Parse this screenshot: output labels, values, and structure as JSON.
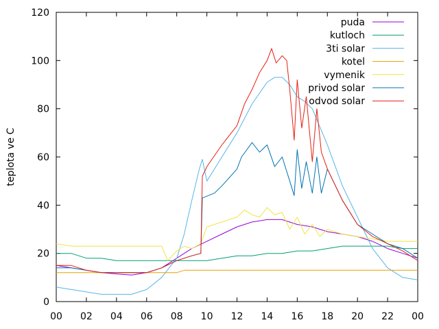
{
  "chart_data": {
    "type": "line",
    "title": "",
    "xlabel": "",
    "ylabel": "teplota ve C",
    "xlim": [
      0,
      24
    ],
    "ylim": [
      0,
      120
    ],
    "x_ticks": [
      "00",
      "02",
      "04",
      "06",
      "08",
      "10",
      "12",
      "14",
      "16",
      "18",
      "20",
      "22",
      "00"
    ],
    "y_ticks": [
      "0",
      "20",
      "40",
      "60",
      "80",
      "100",
      "120"
    ],
    "grid": false,
    "legend_position": "top-right",
    "series": [
      {
        "name": "puda",
        "color": "#9400d3",
        "points": [
          [
            0,
            15
          ],
          [
            1,
            14
          ],
          [
            2,
            13
          ],
          [
            3,
            12
          ],
          [
            4,
            11.5
          ],
          [
            5,
            11
          ],
          [
            6,
            12
          ],
          [
            7,
            14
          ],
          [
            8,
            18
          ],
          [
            9,
            22
          ],
          [
            10,
            25
          ],
          [
            11,
            28
          ],
          [
            12,
            31
          ],
          [
            13,
            33
          ],
          [
            14,
            34
          ],
          [
            15,
            34
          ],
          [
            16,
            32
          ],
          [
            17,
            31
          ],
          [
            18,
            29
          ],
          [
            19,
            28
          ],
          [
            20,
            27
          ],
          [
            21,
            25
          ],
          [
            22,
            22
          ],
          [
            23,
            20
          ],
          [
            24,
            18
          ]
        ]
      },
      {
        "name": "kutloch",
        "color": "#009e73",
        "points": [
          [
            0,
            20
          ],
          [
            1,
            20
          ],
          [
            2,
            18
          ],
          [
            3,
            18
          ],
          [
            4,
            17
          ],
          [
            5,
            17
          ],
          [
            6,
            17
          ],
          [
            7,
            17
          ],
          [
            8,
            17
          ],
          [
            9,
            17
          ],
          [
            10,
            17
          ],
          [
            11,
            18
          ],
          [
            12,
            19
          ],
          [
            13,
            19
          ],
          [
            14,
            20
          ],
          [
            15,
            20
          ],
          [
            16,
            21
          ],
          [
            17,
            21
          ],
          [
            18,
            22
          ],
          [
            19,
            23
          ],
          [
            20,
            23
          ],
          [
            21,
            23
          ],
          [
            22,
            23
          ],
          [
            23,
            22
          ],
          [
            24,
            22
          ]
        ]
      },
      {
        "name": "3ti solar",
        "color": "#56b4e9",
        "points": [
          [
            0,
            6
          ],
          [
            1,
            5
          ],
          [
            2,
            4
          ],
          [
            3,
            3
          ],
          [
            4,
            3
          ],
          [
            5,
            3
          ],
          [
            6,
            5
          ],
          [
            7,
            10
          ],
          [
            8,
            18
          ],
          [
            8.5,
            28
          ],
          [
            9,
            42
          ],
          [
            9.5,
            55
          ],
          [
            9.7,
            59
          ],
          [
            10,
            50
          ],
          [
            10.5,
            55
          ],
          [
            11,
            60
          ],
          [
            12,
            70
          ],
          [
            13,
            82
          ],
          [
            14,
            91
          ],
          [
            14.5,
            93
          ],
          [
            15,
            93
          ],
          [
            15.5,
            90
          ],
          [
            16,
            85
          ],
          [
            16.5,
            83
          ],
          [
            17,
            80
          ],
          [
            18,
            65
          ],
          [
            19,
            48
          ],
          [
            20,
            35
          ],
          [
            21,
            22
          ],
          [
            22,
            14
          ],
          [
            23,
            10
          ],
          [
            24,
            9
          ]
        ]
      },
      {
        "name": "kotel",
        "color": "#e69f00",
        "points": [
          [
            0,
            12
          ],
          [
            2,
            12
          ],
          [
            4,
            12
          ],
          [
            6,
            12
          ],
          [
            8,
            12
          ],
          [
            8.5,
            13
          ],
          [
            10,
            13
          ],
          [
            12,
            13
          ],
          [
            14,
            13
          ],
          [
            16,
            13
          ],
          [
            18,
            13
          ],
          [
            20,
            13
          ],
          [
            22,
            13
          ],
          [
            24,
            13
          ]
        ]
      },
      {
        "name": "vymenik",
        "color": "#f0e442",
        "points": [
          [
            0,
            24
          ],
          [
            1,
            23
          ],
          [
            2,
            23
          ],
          [
            4,
            23
          ],
          [
            6,
            23
          ],
          [
            7,
            23
          ],
          [
            7.4,
            17
          ],
          [
            8,
            21
          ],
          [
            8.5,
            23
          ],
          [
            9,
            22
          ],
          [
            9.6,
            24
          ],
          [
            10,
            31
          ],
          [
            11,
            33
          ],
          [
            12,
            35
          ],
          [
            12.5,
            38
          ],
          [
            13,
            36
          ],
          [
            13.5,
            35
          ],
          [
            14,
            39
          ],
          [
            14.5,
            36
          ],
          [
            15,
            37
          ],
          [
            15.5,
            30
          ],
          [
            16,
            35
          ],
          [
            16.5,
            28
          ],
          [
            17,
            32
          ],
          [
            17.5,
            27
          ],
          [
            18,
            30
          ],
          [
            19,
            28
          ],
          [
            20,
            27
          ],
          [
            21,
            26
          ],
          [
            22,
            25
          ],
          [
            23,
            25
          ],
          [
            24,
            25
          ]
        ]
      },
      {
        "name": "privod solar",
        "color": "#0072b2",
        "points": [
          [
            0,
            14
          ],
          [
            1,
            14
          ],
          [
            2,
            13
          ],
          [
            3,
            12
          ],
          [
            4,
            12
          ],
          [
            5,
            12
          ],
          [
            6,
            12
          ],
          [
            7,
            14
          ],
          [
            8,
            17
          ],
          [
            9,
            19
          ],
          [
            9.6,
            20
          ],
          [
            9.7,
            43
          ],
          [
            10.5,
            45
          ],
          [
            11,
            48
          ],
          [
            12,
            55
          ],
          [
            12.3,
            60
          ],
          [
            13,
            66
          ],
          [
            13.5,
            62
          ],
          [
            14,
            65
          ],
          [
            14.5,
            56
          ],
          [
            15,
            60
          ],
          [
            15.5,
            50
          ],
          [
            15.8,
            44
          ],
          [
            16,
            63
          ],
          [
            16.3,
            47
          ],
          [
            16.6,
            58
          ],
          [
            17,
            45
          ],
          [
            17.3,
            60
          ],
          [
            17.6,
            45
          ],
          [
            18,
            55
          ],
          [
            19,
            42
          ],
          [
            20,
            32
          ],
          [
            21,
            28
          ],
          [
            22,
            24
          ],
          [
            23,
            22
          ],
          [
            24,
            18
          ]
        ]
      },
      {
        "name": "odvod solar",
        "color": "#e51e10",
        "points": [
          [
            0,
            15
          ],
          [
            1,
            15
          ],
          [
            2,
            13
          ],
          [
            3,
            12
          ],
          [
            4,
            12
          ],
          [
            5,
            12
          ],
          [
            6,
            12
          ],
          [
            7,
            14
          ],
          [
            8,
            17
          ],
          [
            9,
            19
          ],
          [
            9.6,
            20
          ],
          [
            9.7,
            52
          ],
          [
            10,
            56
          ],
          [
            11,
            65
          ],
          [
            12,
            73
          ],
          [
            12.5,
            82
          ],
          [
            13,
            88
          ],
          [
            13.5,
            95
          ],
          [
            14,
            100
          ],
          [
            14.3,
            105
          ],
          [
            14.6,
            99
          ],
          [
            15,
            102
          ],
          [
            15.3,
            100
          ],
          [
            15.5,
            88
          ],
          [
            15.8,
            67
          ],
          [
            16,
            92
          ],
          [
            16.3,
            72
          ],
          [
            16.6,
            85
          ],
          [
            17,
            58
          ],
          [
            17.3,
            80
          ],
          [
            17.6,
            62
          ],
          [
            18,
            55
          ],
          [
            19,
            42
          ],
          [
            20,
            32
          ],
          [
            21,
            27
          ],
          [
            22,
            24
          ],
          [
            23,
            21
          ],
          [
            24,
            17
          ]
        ]
      }
    ]
  }
}
